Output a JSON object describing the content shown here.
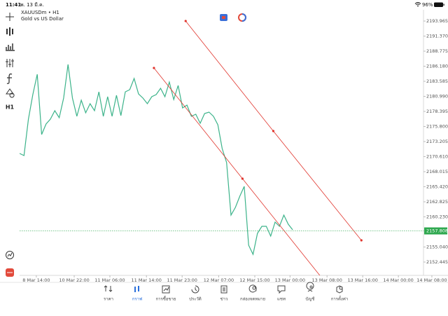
{
  "status_bar": {
    "time": "11:41",
    "date": "พ. 13 มี.ค.",
    "battery": "96%"
  },
  "toolbar": {
    "timeframe": "H1"
  },
  "chart_data": {
    "type": "line",
    "title": "XAUUSDm • H1",
    "subtitle": "Gold vs US Dollar",
    "x": [
      0,
      1,
      2,
      3,
      4,
      5,
      6,
      7,
      8,
      9,
      10,
      11,
      12,
      13,
      14,
      15,
      16,
      17,
      18,
      19,
      20,
      21,
      22,
      23,
      24,
      25,
      26,
      27,
      28,
      29,
      30,
      31,
      32,
      33,
      34,
      35,
      36,
      37,
      38,
      39,
      40,
      41,
      42,
      43,
      44,
      45,
      46,
      47,
      48,
      49,
      50,
      51,
      52,
      53,
      54,
      55,
      56,
      57,
      58,
      59,
      60,
      61,
      62
    ],
    "series": [
      {
        "name": "XAUUSDm",
        "color": "#3cb38a",
        "values": [
          2171.15,
          2170.79,
          2177.07,
          2181.29,
          2184.79,
          2174.41,
          2176.22,
          2177.07,
          2178.52,
          2177.31,
          2180.69,
          2186.48,
          2180.69,
          2177.55,
          2180.33,
          2178.15,
          2179.72,
          2178.52,
          2181.77,
          2177.55,
          2180.93,
          2177.55,
          2181.17,
          2177.67,
          2181.77,
          2182.14,
          2184.07,
          2181.41,
          2180.69,
          2179.72,
          2180.93,
          2181.29,
          2182.38,
          2180.93,
          2183.46,
          2180.45,
          2182.86,
          2179.0,
          2179.48,
          2177.55,
          2177.91,
          2176.34,
          2178.03,
          2178.27,
          2177.55,
          2176.1,
          2172.0,
          2169.58,
          2160.53,
          2161.86,
          2163.79,
          2165.48,
          2155.34,
          2153.77,
          2157.39,
          2158.6,
          2158.6,
          2156.91,
          2159.32,
          2158.6,
          2160.53,
          2158.96,
          2158.0
        ]
      }
    ],
    "trendlines": [
      {
        "color": "#e0342c",
        "x": [
          37.7,
          57.6,
          77.6
        ],
        "values": [
          2193.97,
          2175.02,
          2156.19
        ]
      },
      {
        "color": "#e0342c",
        "x": [
          30.5,
          50.6,
          68.4
        ],
        "values": [
          2185.88,
          2166.81,
          2149.91
        ]
      }
    ],
    "current_price": 2157.808,
    "current_price_color": "#2fa84f",
    "xlim": [
      0,
      91.7
    ],
    "ylim": [
      2150.15,
      2195.9
    ],
    "xticks": [
      {
        "value": 3.8,
        "label": "8 Mar 14:00"
      },
      {
        "value": 12.4,
        "label": "10 Mar 22:00"
      },
      {
        "value": 20.5,
        "label": "11 Mar 06:00"
      },
      {
        "value": 28.8,
        "label": "11 Mar 14:00"
      },
      {
        "value": 36.9,
        "label": "11 Mar 23:00"
      },
      {
        "value": 45.2,
        "label": "12 Mar 07:00"
      },
      {
        "value": 53.4,
        "label": "12 Mar 15:00"
      },
      {
        "value": 61.4,
        "label": "13 Mar 00:00"
      },
      {
        "value": 69.8,
        "label": "13 Mar 08:00"
      },
      {
        "value": 77.9,
        "label": "13 Mar 16:00"
      },
      {
        "value": 86.0,
        "label": "14 Mar 00:00"
      },
      {
        "value": 93.6,
        "label": "14 Mar 08:00"
      }
    ],
    "yticks": [
      2193.965,
      {
        "value": 2191.37,
        "label": "2191.370"
      },
      2188.775,
      {
        "value": 2186.18,
        "label": "2186.180"
      },
      2183.585,
      {
        "value": 2180.99,
        "label": "2180.990"
      },
      2178.395,
      {
        "value": 2175.8,
        "label": "2175.800"
      },
      2173.205,
      {
        "value": 2170.61,
        "label": "2170.610"
      },
      2168.015,
      {
        "value": 2165.42,
        "label": "2165.420"
      },
      2162.825,
      {
        "value": 2160.23,
        "label": "2160.230"
      },
      {
        "value": 2155.04,
        "label": "2155.040"
      },
      2152.445
    ]
  },
  "bottom_nav": {
    "items": [
      "ราคา",
      "กราฟ",
      "การซื้อขาย",
      "ประวัติ",
      "ข่าว",
      "กล่องจดหมาย",
      "แชท",
      "บัญชี",
      "การตั้งค่า"
    ],
    "active": 1,
    "active_color": "#2a6fdb"
  }
}
